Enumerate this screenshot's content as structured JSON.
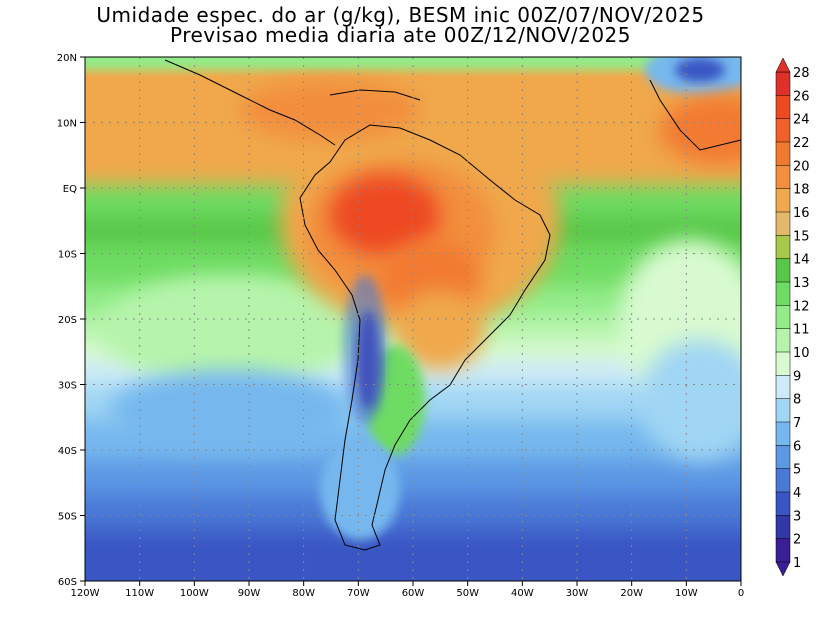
{
  "title_line1": "Umidade espec. do ar (g/kg), BESM inic 00Z/07/NOV/2025",
  "title_line2": "Previsao media diaria ate 00Z/12/NOV/2025",
  "lat_labels": [
    "20N",
    "10N",
    "EQ",
    "10S",
    "20S",
    "30S",
    "40S",
    "50S",
    "60S"
  ],
  "lon_labels": [
    "120W",
    "110W",
    "100W",
    "90W",
    "80W",
    "70W",
    "60W",
    "50W",
    "40W",
    "30W",
    "20W",
    "10W",
    "0"
  ],
  "colorbar": {
    "labels": [
      "28",
      "26",
      "24",
      "22",
      "20",
      "18",
      "16",
      "15",
      "14",
      "13",
      "12",
      "11",
      "10",
      "9",
      "8",
      "7",
      "6",
      "5",
      "4",
      "3",
      "2",
      "1"
    ],
    "colors": [
      "#e0302a",
      "#ee4a22",
      "#f2602a",
      "#f27a30",
      "#f28e3c",
      "#f0a84c",
      "#e2b86a",
      "#a8c84a",
      "#58c848",
      "#6edc62",
      "#92ec88",
      "#b6f4ac",
      "#d8fad0",
      "#cceaf8",
      "#a0d6f4",
      "#76b8ee",
      "#5c98e4",
      "#4a78d6",
      "#3a56c4",
      "#3238a8",
      "#3a1e96"
    ]
  }
}
